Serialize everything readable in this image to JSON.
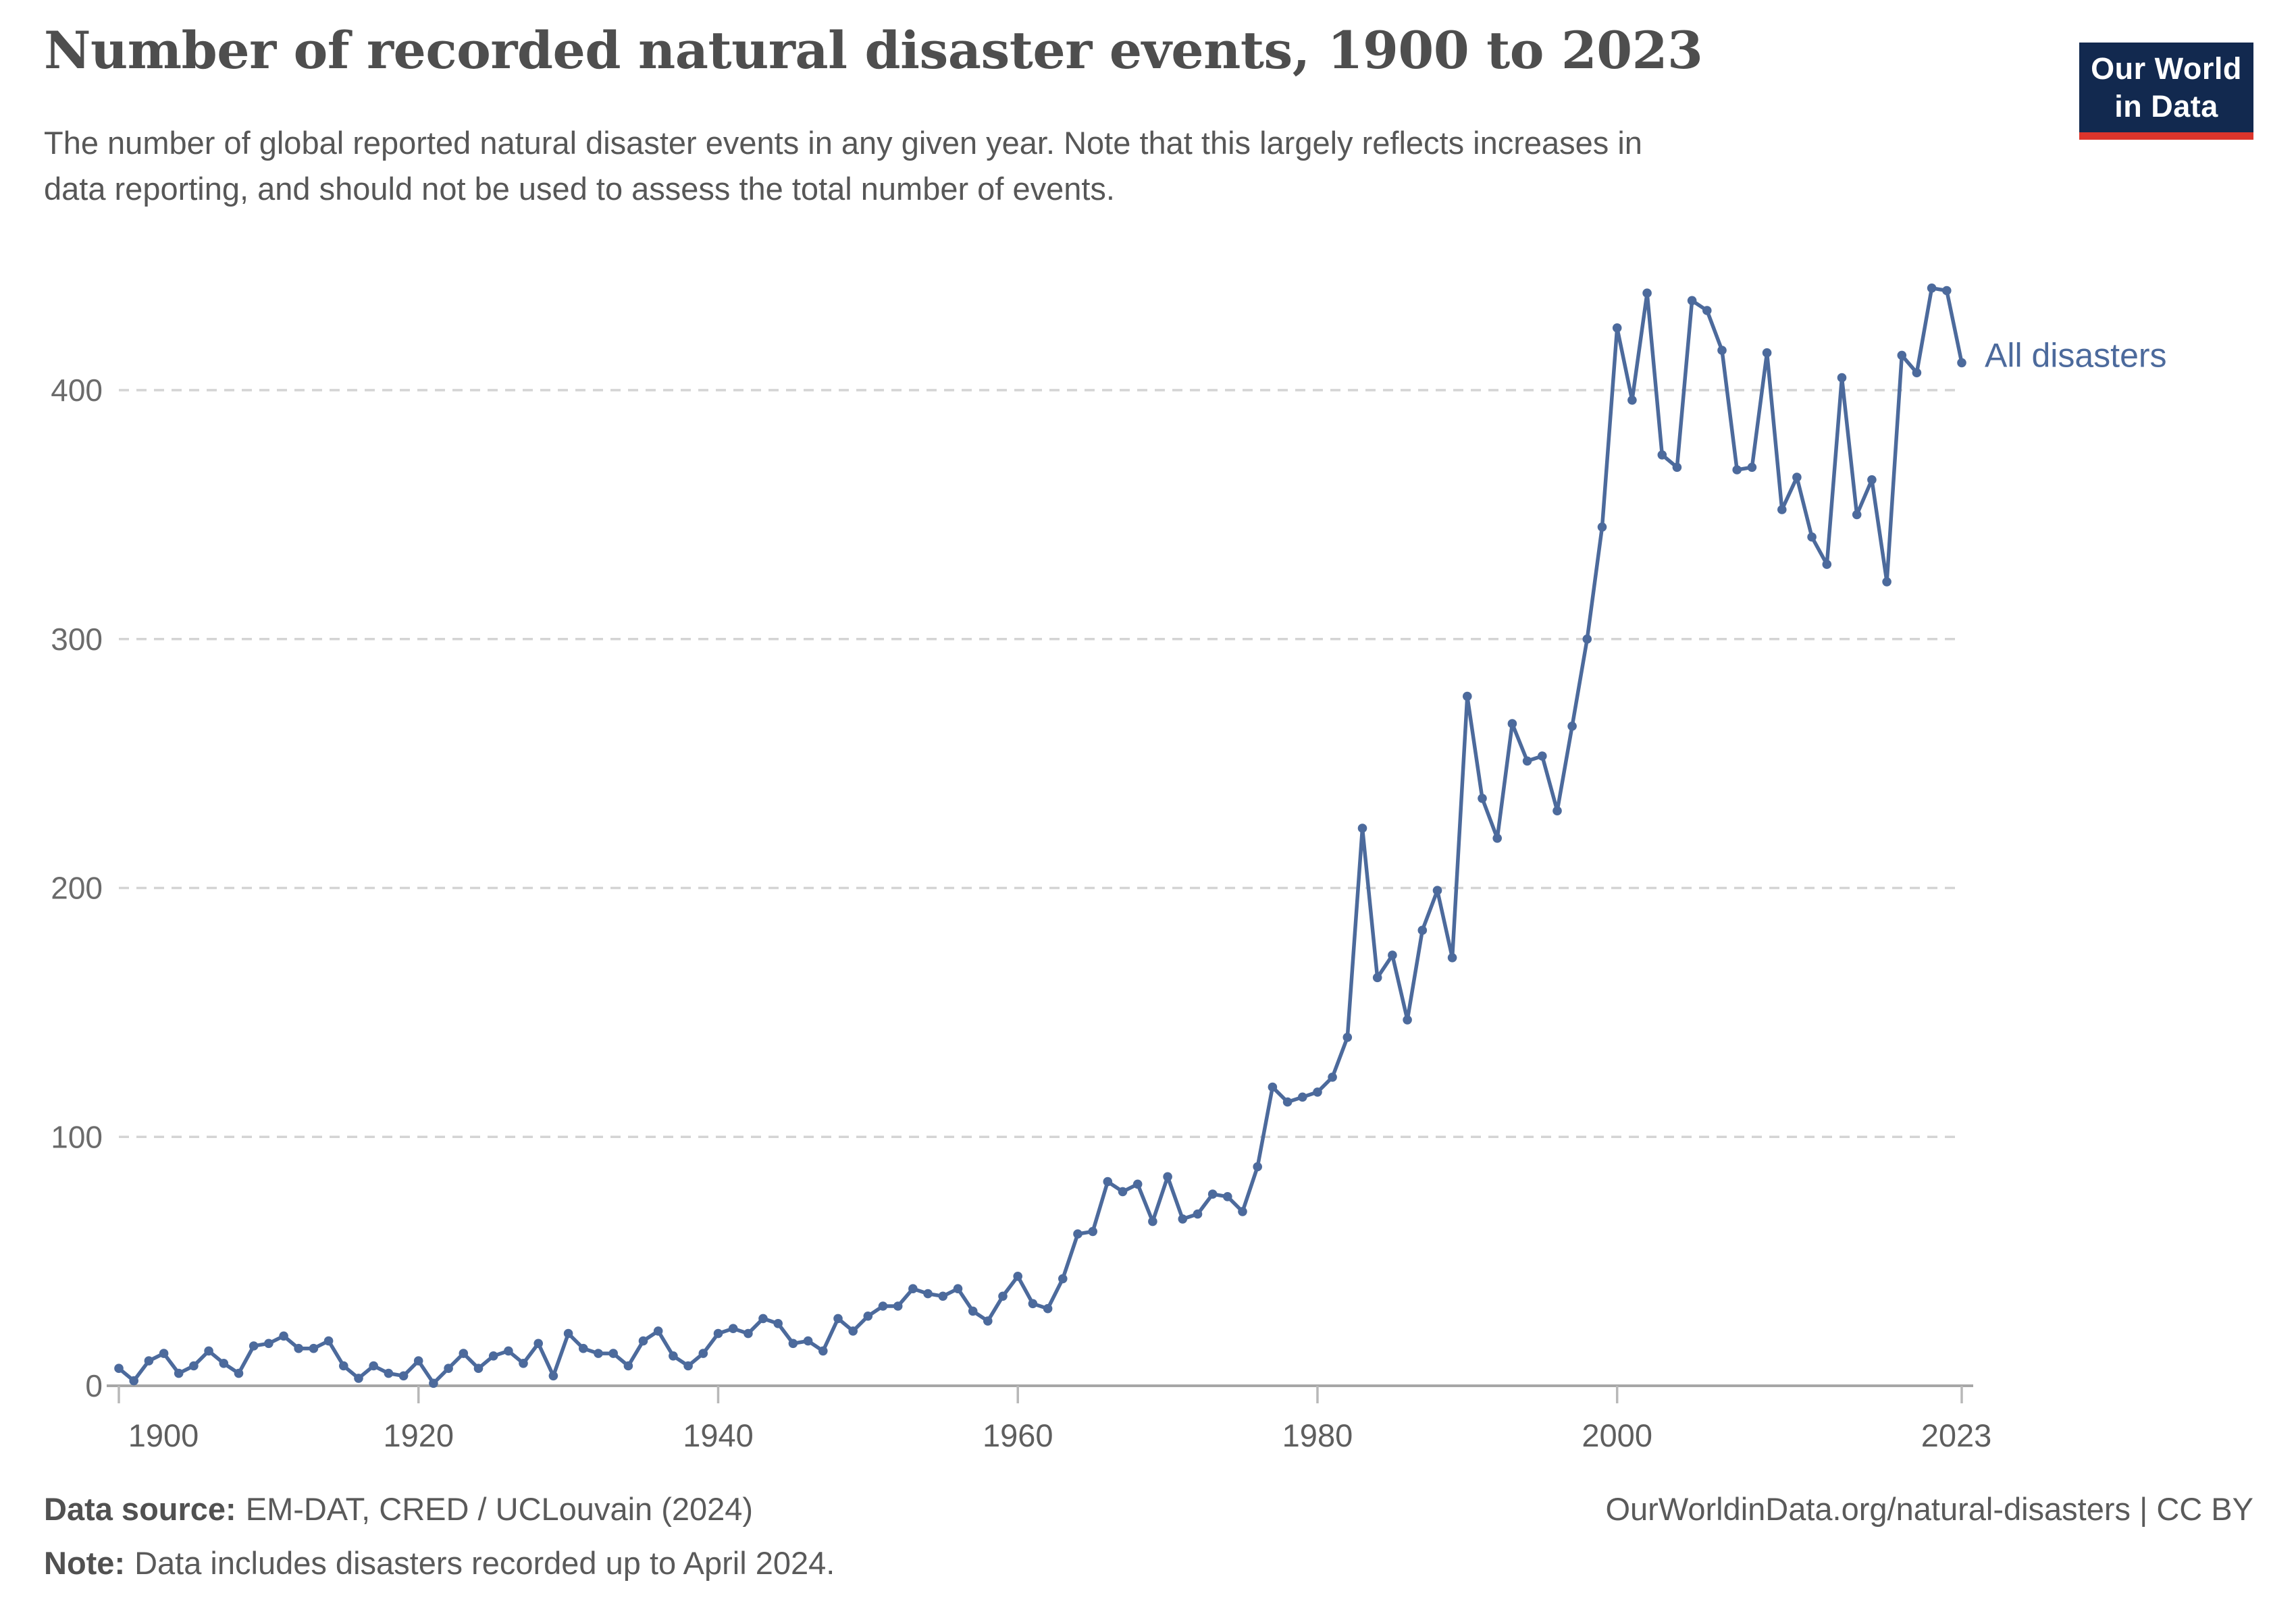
{
  "header": {
    "title": "Number of recorded natural disaster events, 1900 to 2023",
    "subtitle_line1": "The number of global reported natural disaster events in any given year. Note that this largely reflects increases in",
    "subtitle_line2": "data reporting, and should not be used to assess the total number of events."
  },
  "logo": {
    "line1": "Our World",
    "line2": "in Data"
  },
  "chart_data": {
    "type": "line",
    "title": "Number of recorded natural disaster events, 1900 to 2023",
    "xlabel": "",
    "ylabel": "",
    "xlim": [
      1900,
      2023
    ],
    "ylim": [
      0,
      455
    ],
    "x_ticks": [
      1900,
      1920,
      1940,
      1960,
      1980,
      2000,
      2023
    ],
    "y_ticks": [
      0,
      100,
      200,
      300,
      400
    ],
    "grid": "horizontal-dashed",
    "legend_position": "line-end-label",
    "colors": {
      "line": "#4C6A9C",
      "gridline": "#d4d4d4",
      "axis": "#a6a6a6",
      "tick": "#b8b8b8",
      "tick_label": "#5e5e5e",
      "y_label": "#6b6b6b"
    },
    "series": [
      {
        "name": "All disasters",
        "color": "#4C6A9C",
        "points": [
          [
            1900,
            7
          ],
          [
            1901,
            2
          ],
          [
            1902,
            10
          ],
          [
            1903,
            13
          ],
          [
            1904,
            5
          ],
          [
            1905,
            8
          ],
          [
            1906,
            14
          ],
          [
            1907,
            9
          ],
          [
            1908,
            5
          ],
          [
            1909,
            16
          ],
          [
            1910,
            17
          ],
          [
            1911,
            20
          ],
          [
            1912,
            15
          ],
          [
            1913,
            15
          ],
          [
            1914,
            18
          ],
          [
            1915,
            8
          ],
          [
            1916,
            3
          ],
          [
            1917,
            8
          ],
          [
            1918,
            5
          ],
          [
            1919,
            4
          ],
          [
            1920,
            10
          ],
          [
            1921,
            1
          ],
          [
            1922,
            7
          ],
          [
            1923,
            13
          ],
          [
            1924,
            7
          ],
          [
            1925,
            12
          ],
          [
            1926,
            14
          ],
          [
            1927,
            9
          ],
          [
            1928,
            17
          ],
          [
            1929,
            4
          ],
          [
            1930,
            21
          ],
          [
            1931,
            15
          ],
          [
            1932,
            13
          ],
          [
            1933,
            13
          ],
          [
            1934,
            8
          ],
          [
            1935,
            18
          ],
          [
            1936,
            22
          ],
          [
            1937,
            12
          ],
          [
            1938,
            8
          ],
          [
            1939,
            13
          ],
          [
            1940,
            21
          ],
          [
            1941,
            23
          ],
          [
            1942,
            21
          ],
          [
            1943,
            27
          ],
          [
            1944,
            25
          ],
          [
            1945,
            17
          ],
          [
            1946,
            18
          ],
          [
            1947,
            14
          ],
          [
            1948,
            27
          ],
          [
            1949,
            22
          ],
          [
            1950,
            28
          ],
          [
            1951,
            32
          ],
          [
            1952,
            32
          ],
          [
            1953,
            39
          ],
          [
            1954,
            37
          ],
          [
            1955,
            36
          ],
          [
            1956,
            39
          ],
          [
            1957,
            30
          ],
          [
            1958,
            26
          ],
          [
            1959,
            36
          ],
          [
            1960,
            44
          ],
          [
            1961,
            33
          ],
          [
            1962,
            31
          ],
          [
            1963,
            43
          ],
          [
            1964,
            61
          ],
          [
            1965,
            62
          ],
          [
            1966,
            82
          ],
          [
            1967,
            78
          ],
          [
            1968,
            81
          ],
          [
            1969,
            66
          ],
          [
            1970,
            84
          ],
          [
            1971,
            67
          ],
          [
            1972,
            69
          ],
          [
            1973,
            77
          ],
          [
            1974,
            76
          ],
          [
            1975,
            70
          ],
          [
            1976,
            88
          ],
          [
            1977,
            120
          ],
          [
            1978,
            114
          ],
          [
            1979,
            116
          ],
          [
            1980,
            118
          ],
          [
            1981,
            124
          ],
          [
            1982,
            140
          ],
          [
            1983,
            224
          ],
          [
            1984,
            164
          ],
          [
            1985,
            173
          ],
          [
            1986,
            147
          ],
          [
            1987,
            183
          ],
          [
            1988,
            199
          ],
          [
            1989,
            172
          ],
          [
            1990,
            277
          ],
          [
            1991,
            236
          ],
          [
            1992,
            220
          ],
          [
            1993,
            266
          ],
          [
            1994,
            251
          ],
          [
            1995,
            253
          ],
          [
            1996,
            231
          ],
          [
            1997,
            265
          ],
          [
            1998,
            300
          ],
          [
            1999,
            345
          ],
          [
            2000,
            425
          ],
          [
            2001,
            396
          ],
          [
            2002,
            439
          ],
          [
            2003,
            374
          ],
          [
            2004,
            369
          ],
          [
            2005,
            436
          ],
          [
            2006,
            432
          ],
          [
            2007,
            416
          ],
          [
            2008,
            368
          ],
          [
            2009,
            369
          ],
          [
            2010,
            415
          ],
          [
            2011,
            352
          ],
          [
            2012,
            365
          ],
          [
            2013,
            341
          ],
          [
            2014,
            330
          ],
          [
            2015,
            405
          ],
          [
            2016,
            350
          ],
          [
            2017,
            364
          ],
          [
            2018,
            323
          ],
          [
            2019,
            414
          ],
          [
            2020,
            407
          ],
          [
            2021,
            441
          ],
          [
            2022,
            440
          ],
          [
            2023,
            411
          ]
        ]
      }
    ]
  },
  "footer": {
    "source_label": "Data source:",
    "source_text": "EM-DAT, CRED / UCLouvain (2024)",
    "note_label": "Note:",
    "note_text": "Data includes disasters recorded up to April 2024.",
    "cc_line": "OurWorldinData.org/natural-disasters | CC BY"
  }
}
